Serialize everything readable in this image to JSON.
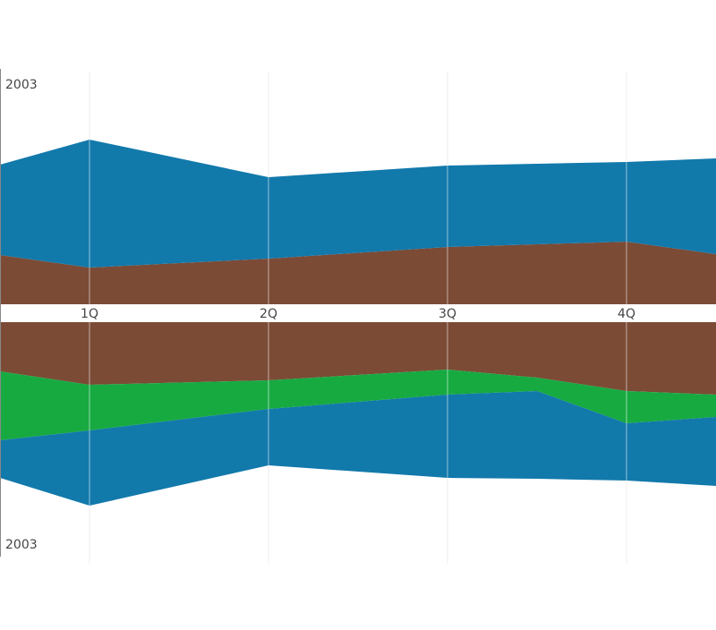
{
  "chart_data": [
    {
      "type": "area",
      "panel": "upper",
      "corner_label": "2003",
      "x": [
        0.5,
        1,
        2,
        3,
        4,
        4.5
      ],
      "categories": [
        "1Q",
        "2Q",
        "3Q",
        "4Q"
      ],
      "series": [
        {
          "color": "#7b4b36",
          "values": [
            55,
            41,
            51,
            64,
            70,
            56
          ]
        },
        {
          "color": "#1279ab",
          "values": [
            101,
            143,
            91,
            91,
            89,
            107
          ]
        }
      ],
      "ylim": [
        0,
        270
      ],
      "baseline": "bottom",
      "grid": true
    },
    {
      "type": "area",
      "panel": "lower",
      "corner_label": "2003",
      "x": [
        0.5,
        1,
        2,
        3,
        3.5,
        4,
        4.5
      ],
      "categories": [
        "1Q",
        "2Q",
        "3Q",
        "4Q"
      ],
      "series": [
        {
          "color": "#7b4b36",
          "values": [
            55,
            70,
            65,
            53,
            62,
            77,
            81
          ]
        },
        {
          "color": "#17aa41",
          "values": [
            77,
            51,
            32,
            28,
            15,
            36,
            25
          ]
        },
        {
          "color": "#1279ab",
          "values": [
            42,
            84,
            63,
            93,
            98,
            64,
            77
          ]
        }
      ],
      "ylim": [
        0,
        270
      ],
      "baseline": "top",
      "grid": true
    }
  ],
  "colors": {
    "background": "#ffffff",
    "grid": "#eeeeee",
    "axis": "#888888",
    "label": "#444444",
    "brown": "#7b4b36",
    "blue": "#1279ab",
    "green": "#17aa41"
  }
}
